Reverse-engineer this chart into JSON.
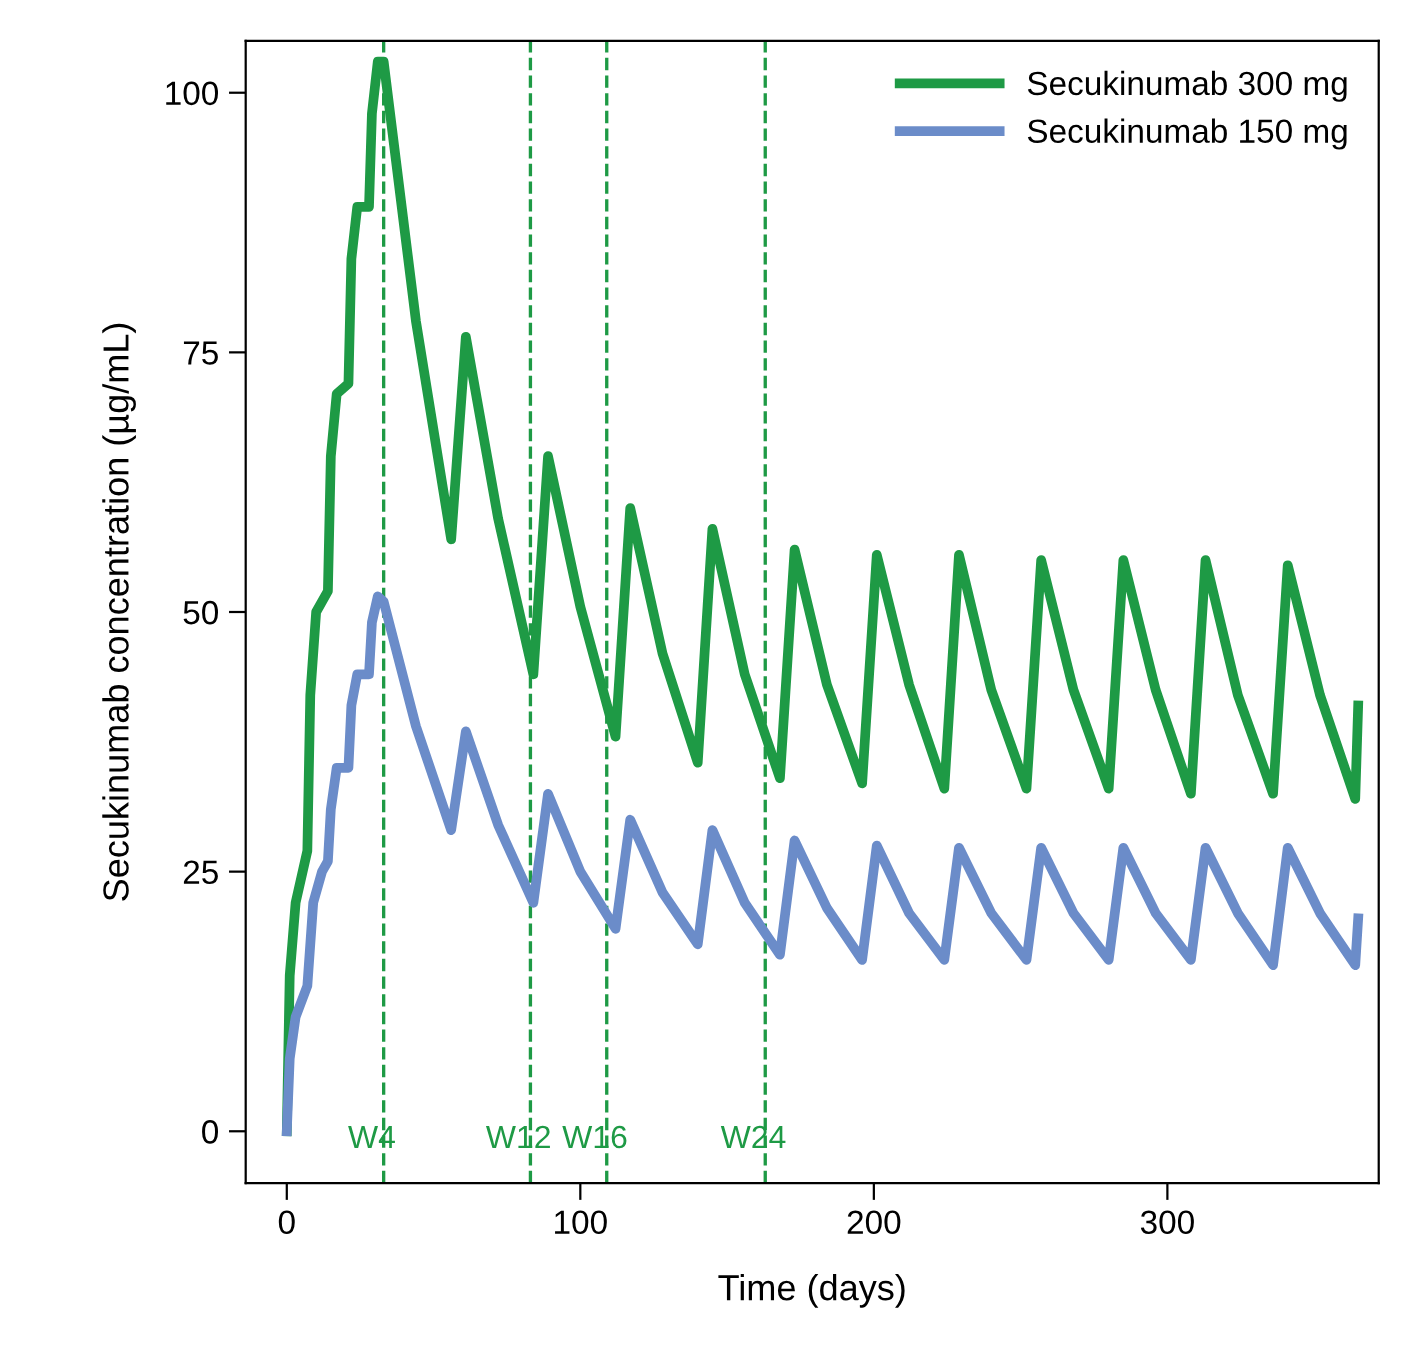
{
  "chart_data": {
    "type": "line",
    "xlabel": "Time (days)",
    "ylabel": "Secukinumab concentration (µg/mL)",
    "series": [
      {
        "name": "Secukinumab 300 mg",
        "color": "#1e9a45",
        "x": [
          0,
          1,
          3,
          7,
          8,
          10,
          14,
          15,
          17,
          21,
          22,
          24,
          28,
          29,
          31,
          33,
          44,
          56,
          61,
          72,
          84,
          89,
          100,
          112,
          117,
          128,
          140,
          145,
          156,
          168,
          173,
          184,
          196,
          201,
          212,
          224,
          229,
          240,
          252,
          257,
          268,
          280,
          285,
          296,
          308,
          313,
          324,
          336,
          341,
          352,
          364,
          365
        ],
        "values": [
          0,
          15,
          22,
          27,
          42,
          50,
          52,
          65,
          71,
          72,
          84,
          89,
          89,
          98,
          103,
          103,
          78,
          57,
          76.5,
          59,
          44,
          65,
          50.5,
          38,
          60,
          46,
          35.5,
          58,
          44,
          34,
          56,
          43,
          33.5,
          55.5,
          43,
          33,
          55.5,
          42.5,
          33,
          55,
          42.5,
          33,
          55,
          42.5,
          32.5,
          55,
          42,
          32.5,
          54.5,
          42,
          32,
          41
        ]
      },
      {
        "name": "Secukinumab 150 mg",
        "color": "#6b8cc9",
        "x": [
          0,
          1,
          3,
          7,
          9,
          12,
          14,
          15,
          17,
          21,
          22,
          24,
          28,
          29,
          31,
          33,
          44,
          56,
          61,
          72,
          84,
          89,
          100,
          112,
          117,
          128,
          140,
          145,
          156,
          168,
          173,
          184,
          196,
          201,
          212,
          224,
          229,
          240,
          252,
          257,
          268,
          280,
          285,
          296,
          308,
          313,
          324,
          336,
          341,
          352,
          364,
          365
        ],
        "values": [
          0,
          7,
          11,
          14,
          22,
          25,
          26,
          31,
          35,
          35,
          41,
          44,
          44,
          49,
          51.5,
          51,
          39,
          29,
          38.5,
          29.5,
          22,
          32.5,
          25,
          19.5,
          30,
          23,
          18,
          29,
          22,
          17,
          28,
          21.5,
          16.5,
          27.5,
          21,
          16.5,
          27.3,
          21,
          16.5,
          27.3,
          21,
          16.5,
          27.3,
          21,
          16.5,
          27.3,
          21,
          16,
          27.3,
          21,
          16,
          20.5
        ]
      }
    ],
    "ref_lines": [
      {
        "axis": "x",
        "value": 33,
        "label": "W4",
        "color": "#1e9a45",
        "line_style": "dashed"
      },
      {
        "axis": "x",
        "value": 83,
        "label": "W12",
        "color": "#1e9a45",
        "line_style": "dashed"
      },
      {
        "axis": "x",
        "value": 109,
        "label": "W16",
        "color": "#1e9a45",
        "line_style": "dashed"
      },
      {
        "axis": "x",
        "value": 163,
        "label": "W24",
        "color": "#1e9a45",
        "line_style": "dashed"
      }
    ],
    "xlim": [
      -14,
      372
    ],
    "xticks": [
      0,
      100,
      200,
      300
    ],
    "ylim": [
      -5,
      105
    ],
    "yticks": [
      0,
      25,
      50,
      75,
      100
    ],
    "grid": false,
    "legend": "top right",
    "marker": "none",
    "line_style": "solid"
  }
}
